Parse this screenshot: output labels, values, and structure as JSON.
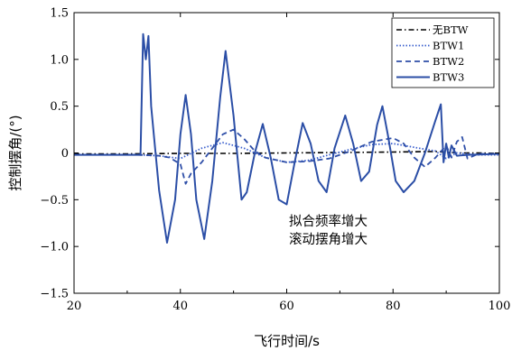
{
  "chart_data": {
    "type": "line",
    "xlabel": "飞行时间/s",
    "ylabel": "控制摆角/(°)",
    "xlim": [
      20,
      100
    ],
    "ylim": [
      -1.5,
      1.5
    ],
    "xticks": [
      "20",
      "40",
      "60",
      "80",
      "100"
    ],
    "yticks": [
      "1.5",
      "1.0",
      "0.5",
      "0",
      "−0.5",
      "−1.0",
      "−1.5"
    ],
    "grid": false,
    "legend_position": "top-right",
    "annotations": [
      "拟合频率增大",
      "滚动摆角增大"
    ],
    "series": [
      {
        "name": "无BTW",
        "color": "#000000",
        "style": "dash-dot",
        "points": [
          [
            20,
            -0.01
          ],
          [
            30,
            -0.01
          ],
          [
            40,
            -0.005
          ],
          [
            50,
            -0.005
          ],
          [
            60,
            0.0
          ],
          [
            70,
            0.005
          ],
          [
            80,
            0.01
          ],
          [
            88,
            0.015
          ],
          [
            92,
            0.0
          ],
          [
            96,
            0.0
          ],
          [
            100,
            -0.005
          ]
        ]
      },
      {
        "name": "BTW1",
        "color": "#3a5fcd",
        "style": "dotted",
        "points": [
          [
            20,
            -0.02
          ],
          [
            32,
            -0.02
          ],
          [
            36,
            -0.03
          ],
          [
            40,
            -0.06
          ],
          [
            44,
            0.05
          ],
          [
            48,
            0.11
          ],
          [
            52,
            0.05
          ],
          [
            56,
            -0.05
          ],
          [
            60,
            -0.1
          ],
          [
            64,
            -0.08
          ],
          [
            68,
            -0.02
          ],
          [
            72,
            0.04
          ],
          [
            76,
            0.09
          ],
          [
            80,
            0.1
          ],
          [
            84,
            0.06
          ],
          [
            88,
            0.02
          ],
          [
            90,
            -0.06
          ],
          [
            92,
            0.0
          ],
          [
            96,
            -0.02
          ],
          [
            100,
            -0.02
          ]
        ]
      },
      {
        "name": "BTW2",
        "color": "#2f4fa8",
        "style": "dashed",
        "points": [
          [
            20,
            -0.02
          ],
          [
            32,
            -0.02
          ],
          [
            36,
            -0.03
          ],
          [
            38,
            -0.05
          ],
          [
            40,
            -0.12
          ],
          [
            41,
            -0.33
          ],
          [
            42,
            -0.22
          ],
          [
            44,
            -0.1
          ],
          [
            46,
            0.05
          ],
          [
            48,
            0.2
          ],
          [
            50,
            0.25
          ],
          [
            52,
            0.15
          ],
          [
            54,
            0.02
          ],
          [
            56,
            -0.05
          ],
          [
            60,
            -0.1
          ],
          [
            64,
            -0.09
          ],
          [
            68,
            -0.06
          ],
          [
            72,
            0.02
          ],
          [
            76,
            0.12
          ],
          [
            80,
            0.16
          ],
          [
            82,
            0.1
          ],
          [
            84,
            -0.05
          ],
          [
            86,
            -0.15
          ],
          [
            88,
            -0.05
          ],
          [
            90,
            0.08
          ],
          [
            91,
            -0.05
          ],
          [
            92,
            0.12
          ],
          [
            93,
            0.17
          ],
          [
            94,
            -0.06
          ],
          [
            96,
            -0.01
          ],
          [
            100,
            -0.01
          ]
        ]
      },
      {
        "name": "BTW3",
        "color": "#2b4ea6",
        "style": "solid",
        "points": [
          [
            20,
            -0.02
          ],
          [
            32.5,
            -0.02
          ],
          [
            33,
            1.27
          ],
          [
            33.5,
            1.0
          ],
          [
            34,
            1.25
          ],
          [
            34.5,
            0.5
          ],
          [
            35,
            0.2
          ],
          [
            36,
            -0.4
          ],
          [
            37.5,
            -0.96
          ],
          [
            39,
            -0.5
          ],
          [
            40,
            0.2
          ],
          [
            41,
            0.62
          ],
          [
            42,
            0.2
          ],
          [
            43,
            -0.5
          ],
          [
            44.5,
            -0.92
          ],
          [
            46,
            -0.3
          ],
          [
            47.5,
            0.6
          ],
          [
            48.5,
            1.09
          ],
          [
            50,
            0.4
          ],
          [
            51.5,
            -0.5
          ],
          [
            52.5,
            -0.42
          ],
          [
            54,
            0.0
          ],
          [
            55.5,
            0.31
          ],
          [
            57,
            -0.05
          ],
          [
            58.5,
            -0.5
          ],
          [
            60,
            -0.55
          ],
          [
            61.5,
            -0.1
          ],
          [
            63,
            0.32
          ],
          [
            64.5,
            0.1
          ],
          [
            66,
            -0.3
          ],
          [
            67.5,
            -0.42
          ],
          [
            69,
            0.05
          ],
          [
            71,
            0.4
          ],
          [
            72.5,
            0.1
          ],
          [
            74,
            -0.3
          ],
          [
            75.5,
            -0.2
          ],
          [
            77,
            0.3
          ],
          [
            78,
            0.5
          ],
          [
            79,
            0.2
          ],
          [
            80.5,
            -0.3
          ],
          [
            82,
            -0.42
          ],
          [
            84,
            -0.3
          ],
          [
            86,
            0.0
          ],
          [
            88,
            0.35
          ],
          [
            89,
            0.52
          ],
          [
            89.5,
            -0.1
          ],
          [
            90,
            0.1
          ],
          [
            90.5,
            -0.05
          ],
          [
            91,
            0.08
          ],
          [
            92,
            -0.03
          ],
          [
            94,
            -0.02
          ],
          [
            100,
            -0.01
          ]
        ]
      }
    ]
  }
}
